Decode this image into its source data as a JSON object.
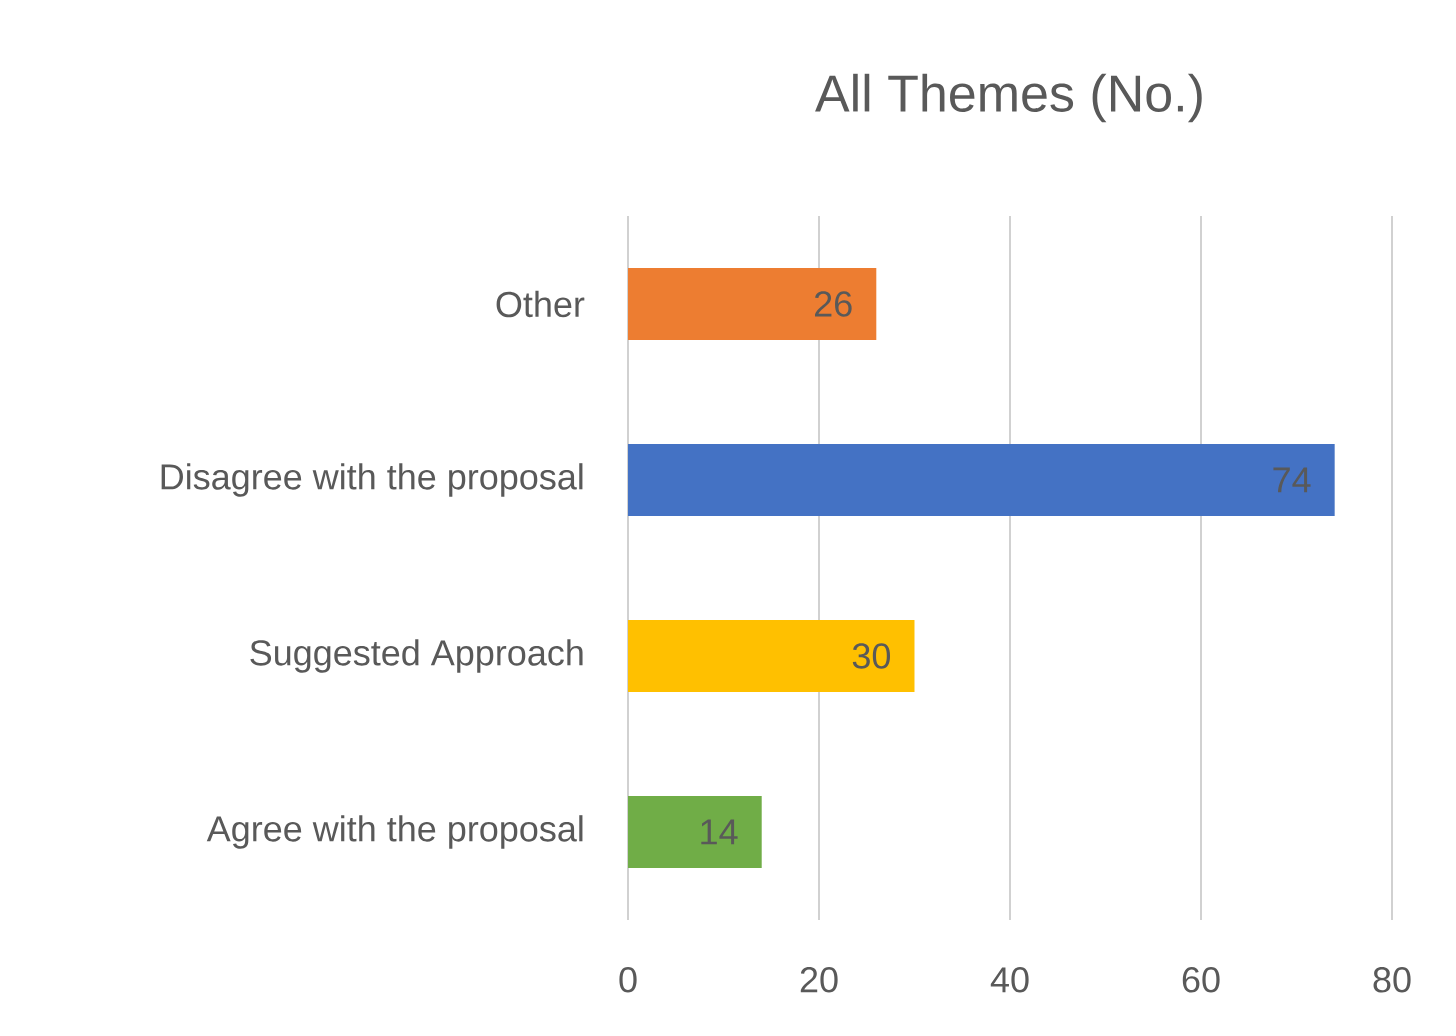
{
  "chart_data": {
    "type": "bar",
    "orientation": "horizontal",
    "title": "All Themes (No.)",
    "categories": [
      "Other",
      "Disagree with the proposal",
      "Suggested Approach",
      "Agree with the proposal"
    ],
    "values": [
      26,
      74,
      30,
      14
    ],
    "colors": [
      "#ed7d31",
      "#4472c4",
      "#ffc000",
      "#70ad47"
    ],
    "xlim": [
      0,
      80
    ],
    "xticks": [
      0,
      20,
      40,
      60,
      80
    ],
    "grid": "x",
    "data_labels": true
  }
}
